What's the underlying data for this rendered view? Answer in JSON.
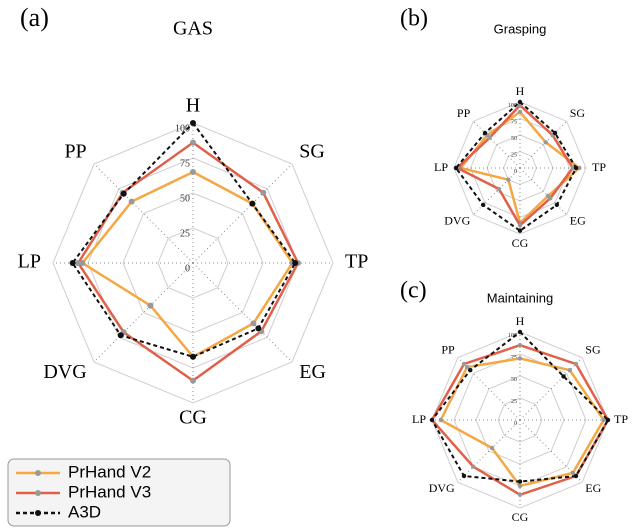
{
  "chart_data": [
    {
      "type": "radar",
      "panel_label": "(a)",
      "title": "GAS",
      "categories": [
        "H",
        "SG",
        "TP",
        "EG",
        "CG",
        "DVG",
        "LP",
        "PP"
      ],
      "rlim": [
        0,
        100
      ],
      "rticks": [
        0,
        25,
        50,
        75,
        100
      ],
      "grid": true,
      "legend": "lower left",
      "series": [
        {
          "name": "PrHand V2",
          "color": "#f5a742",
          "dash": false,
          "values": [
            65,
            60,
            71,
            61,
            67,
            43,
            79,
            62
          ]
        },
        {
          "name": "PrHand V3",
          "color": "#e0604a",
          "dash": false,
          "values": [
            86,
            71,
            75,
            69,
            84,
            70,
            82,
            71
          ]
        },
        {
          "name": "A3D",
          "color": "#111111",
          "dash": true,
          "values": [
            100,
            60,
            73,
            66,
            67,
            73,
            86,
            70
          ]
        }
      ]
    },
    {
      "type": "radar",
      "panel_label": "(b)",
      "title": "Grasping",
      "categories": [
        "H",
        "SG",
        "TP",
        "EG",
        "CG",
        "DVG",
        "LP",
        "PP"
      ],
      "rlim": [
        0,
        100
      ],
      "rticks": [
        0,
        25,
        50,
        75,
        100
      ],
      "grid": true,
      "series": [
        {
          "color": "#f5a742",
          "dash": false,
          "values": [
            85,
            55,
            90,
            60,
            83,
            25,
            90,
            70
          ]
        },
        {
          "color": "#e0604a",
          "dash": false,
          "values": [
            95,
            70,
            80,
            65,
            87,
            45,
            95,
            65
          ]
        },
        {
          "color": "#111111",
          "dash": true,
          "values": [
            100,
            75,
            85,
            79,
            95,
            79,
            97,
            75
          ]
        }
      ]
    },
    {
      "type": "radar",
      "panel_label": "(c)",
      "title": "Maintaining",
      "categories": [
        "H",
        "SG",
        "TP",
        "EG",
        "CG",
        "DVG",
        "LP",
        "PP"
      ],
      "rlim": [
        0,
        100
      ],
      "rticks": [
        0,
        25,
        50,
        75,
        100
      ],
      "grid": true,
      "series": [
        {
          "color": "#f5a742",
          "dash": false,
          "values": [
            70,
            80,
            95,
            85,
            75,
            45,
            90,
            85
          ]
        },
        {
          "color": "#e0604a",
          "dash": false,
          "values": [
            85,
            90,
            100,
            90,
            85,
            75,
            100,
            90
          ]
        },
        {
          "color": "#111111",
          "dash": true,
          "values": [
            100,
            70,
            100,
            90,
            70,
            90,
            100,
            80
          ]
        }
      ]
    }
  ]
}
